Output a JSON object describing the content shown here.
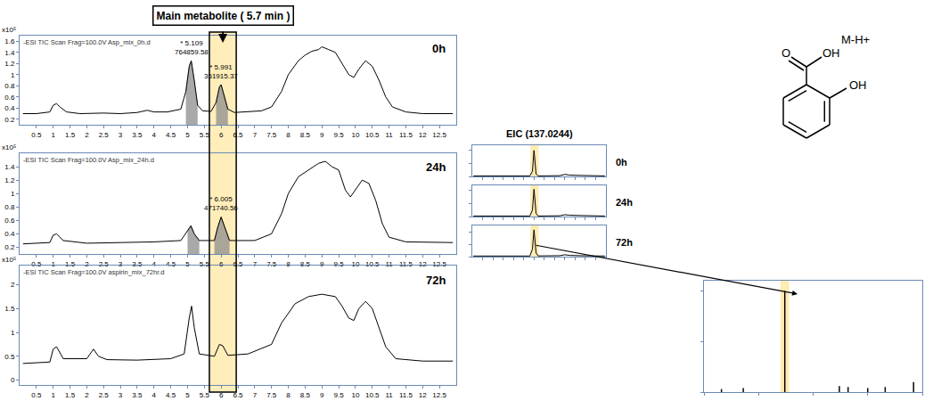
{
  "figure": {
    "band": {
      "range": [
        5.65,
        6.45
      ],
      "label": "Main metabolite ( 5.7 min )"
    },
    "eic_title": "EIC (137.0244)",
    "structure": {
      "label": "M-H+",
      "atoms": [
        "O",
        "OH",
        "OH"
      ]
    }
  },
  "chart_data": [
    {
      "type": "line",
      "title": "-ESI TIC Scan Frag=100.0V Asp_mix_0h.d",
      "label": "0h",
      "y_multiplier": "x10⁵",
      "color": "#000000",
      "x": [
        0.1,
        0.5,
        0.9,
        1.0,
        1.1,
        1.2,
        1.4,
        1.8,
        2.5,
        3.0,
        3.5,
        3.8,
        4.0,
        4.4,
        4.8,
        4.95,
        5.05,
        5.11,
        5.2,
        5.3,
        5.45,
        5.7,
        5.85,
        5.95,
        6.0,
        6.1,
        6.2,
        6.4,
        6.8,
        7.2,
        7.5,
        7.8,
        8.0,
        8.3,
        8.5,
        8.7,
        8.9,
        9.0,
        9.2,
        9.4,
        9.6,
        9.8,
        9.95,
        10.1,
        10.3,
        10.5,
        10.7,
        10.9,
        11.1,
        11.5,
        12.0,
        12.5,
        12.9
      ],
      "values": [
        0.3,
        0.3,
        0.33,
        0.45,
        0.48,
        0.42,
        0.33,
        0.3,
        0.31,
        0.3,
        0.32,
        0.36,
        0.33,
        0.33,
        0.38,
        0.7,
        1.15,
        1.25,
        0.9,
        0.45,
        0.35,
        0.34,
        0.5,
        0.78,
        0.82,
        0.6,
        0.38,
        0.32,
        0.33,
        0.35,
        0.42,
        0.7,
        1.0,
        1.25,
        1.35,
        1.42,
        1.45,
        1.5,
        1.45,
        1.4,
        1.2,
        1.0,
        0.95,
        1.1,
        1.25,
        1.15,
        0.9,
        0.6,
        0.42,
        0.33,
        0.3,
        0.3,
        0.3
      ],
      "shaded": [
        [
          4.85,
          5.4
        ],
        [
          5.75,
          6.3
        ]
      ],
      "annotations": [
        {
          "x": 5.109,
          "y": 1.3,
          "text": [
            "* 5.109",
            "764859.58"
          ]
        },
        {
          "x": 5.991,
          "y": 0.87,
          "text": [
            "* 5.991",
            "351915.37"
          ]
        }
      ],
      "xlim": [
        0,
        13
      ],
      "xticks": [
        0.5,
        1,
        1.5,
        2,
        2.5,
        3,
        3.5,
        4,
        4.5,
        5,
        5.5,
        6,
        6.5,
        7,
        7.5,
        8,
        8.5,
        9,
        9.5,
        10,
        10.5,
        11,
        11.5,
        12,
        12.5
      ],
      "ylim": [
        0.1,
        1.7
      ],
      "yticks": [
        0.2,
        0.4,
        0.6,
        0.8,
        1,
        1.2,
        1.4,
        1.6
      ],
      "grid": false
    },
    {
      "type": "line",
      "title": "-ESI TIC Scan Frag=100.0V Asp_mix_24h.d",
      "label": "24h",
      "y_multiplier": "x10⁵",
      "color": "#000000",
      "x": [
        0.1,
        0.9,
        1.0,
        1.1,
        1.3,
        2.0,
        3.0,
        4.0,
        4.8,
        5.0,
        5.1,
        5.2,
        5.35,
        5.8,
        5.9,
        6.0,
        6.1,
        6.25,
        7.0,
        7.5,
        7.8,
        8.0,
        8.3,
        8.6,
        8.9,
        9.1,
        9.3,
        9.5,
        9.7,
        9.85,
        10.0,
        10.2,
        10.4,
        10.6,
        10.8,
        11.0,
        11.5,
        12.9
      ],
      "values": [
        0.25,
        0.27,
        0.38,
        0.4,
        0.3,
        0.26,
        0.27,
        0.28,
        0.3,
        0.45,
        0.52,
        0.4,
        0.3,
        0.3,
        0.5,
        0.65,
        0.5,
        0.3,
        0.3,
        0.4,
        0.7,
        1.0,
        1.25,
        1.35,
        1.45,
        1.48,
        1.4,
        1.35,
        1.05,
        0.95,
        1.05,
        1.2,
        1.15,
        0.9,
        0.55,
        0.35,
        0.28,
        0.27
      ],
      "shaded": [
        [
          4.85,
          5.4
        ],
        [
          5.75,
          6.3
        ]
      ],
      "annotations": [
        {
          "x": 6.005,
          "y": 0.7,
          "text": [
            "* 6.005",
            "471740.56"
          ]
        }
      ],
      "xlim": [
        0,
        13
      ],
      "xticks": [
        0.5,
        1,
        1.5,
        2,
        2.5,
        3,
        3.5,
        4,
        4.5,
        5,
        5.5,
        6,
        6.5,
        7,
        7.5,
        8,
        8.5,
        9,
        9.5,
        10,
        10.5,
        11,
        11.5,
        12,
        12.5
      ],
      "ylim": [
        0.1,
        1.6
      ],
      "yticks": [
        0.2,
        0.4,
        0.6,
        0.8,
        1,
        1.2,
        1.4
      ],
      "grid": false
    },
    {
      "type": "line",
      "title": "-ESI TIC Scan Frag=100.0V aspirin_mix_72hr.d",
      "label": "72h",
      "y_multiplier": "x10⁵",
      "color": "#000000",
      "x": [
        0.1,
        0.9,
        1.0,
        1.1,
        1.3,
        2.0,
        2.2,
        2.35,
        2.6,
        3.5,
        4.5,
        4.9,
        5.05,
        5.12,
        5.2,
        5.35,
        5.8,
        5.95,
        6.05,
        6.2,
        6.8,
        7.5,
        7.8,
        8.2,
        8.6,
        9.0,
        9.4,
        9.6,
        9.8,
        9.95,
        10.1,
        10.3,
        10.5,
        10.7,
        10.9,
        11.2,
        12.0,
        12.9
      ],
      "values": [
        0.35,
        0.38,
        0.65,
        0.7,
        0.45,
        0.45,
        0.65,
        0.5,
        0.43,
        0.42,
        0.45,
        0.55,
        1.3,
        1.55,
        1.1,
        0.55,
        0.5,
        0.75,
        0.72,
        0.52,
        0.55,
        0.75,
        1.2,
        1.6,
        1.75,
        1.8,
        1.75,
        1.55,
        1.3,
        1.25,
        1.5,
        1.65,
        1.5,
        1.1,
        0.7,
        0.45,
        0.4,
        0.4
      ],
      "xlim": [
        0,
        13
      ],
      "xticks": [
        0.5,
        1,
        1.5,
        2,
        2.5,
        3,
        3.5,
        4,
        4.5,
        5,
        5.5,
        6,
        6.5,
        7,
        7.5,
        8,
        8.5,
        9,
        9.5,
        10,
        10.5,
        11,
        11.5,
        12,
        12.5
      ],
      "ylim": [
        -0.1,
        2.4
      ],
      "yticks": [
        0,
        0.5,
        1,
        1.5,
        2
      ],
      "grid": false
    },
    {
      "type": "line",
      "label": "0h",
      "color": "#000000",
      "x": [
        0.1,
        1.0,
        5.6,
        5.85,
        5.95,
        6.0,
        6.05,
        6.2,
        6.4,
        8.5,
        9.0,
        9.5,
        10.5,
        12.9
      ],
      "values": [
        0.02,
        0.02,
        0.02,
        0.2,
        0.9,
        1.0,
        0.8,
        0.1,
        0.02,
        0.03,
        0.08,
        0.05,
        0.04,
        0.02
      ],
      "highlight": [
        5.65,
        6.45
      ],
      "xlim": [
        0,
        13
      ],
      "xticks": [
        1,
        2,
        3,
        4,
        5,
        6,
        7,
        8,
        9,
        10,
        11,
        12
      ],
      "ylim": [
        0,
        1.2
      ],
      "yticks": [
        0,
        0.5,
        1
      ],
      "tick_labels": false,
      "grid": false
    },
    {
      "type": "line",
      "label": "24h",
      "color": "#000000",
      "x": [
        0.1,
        1.0,
        5.6,
        5.85,
        5.95,
        6.0,
        6.05,
        6.2,
        6.4,
        8.5,
        9.0,
        9.5,
        10.5,
        12.9
      ],
      "values": [
        0.02,
        0.02,
        0.02,
        0.25,
        0.95,
        1.05,
        0.85,
        0.12,
        0.02,
        0.03,
        0.07,
        0.05,
        0.04,
        0.02
      ],
      "highlight": [
        5.65,
        6.45
      ],
      "xlim": [
        0,
        13
      ],
      "xticks": [
        1,
        2,
        3,
        4,
        5,
        6,
        7,
        8,
        9,
        10,
        11,
        12
      ],
      "ylim": [
        0,
        1.2
      ],
      "yticks": [
        0,
        0.5,
        1
      ],
      "tick_labels": false,
      "grid": false
    },
    {
      "type": "line",
      "label": "72h",
      "color": "#000000",
      "x": [
        0.1,
        1.0,
        5.6,
        5.85,
        5.95,
        6.0,
        6.05,
        6.2,
        6.4,
        8.5,
        9.0,
        9.5,
        10.5,
        12.9
      ],
      "values": [
        0.1,
        0.1,
        0.1,
        1.2,
        3.9,
        4.3,
        3.5,
        0.6,
        0.12,
        0.15,
        0.3,
        0.2,
        0.15,
        0.1
      ],
      "highlight": [
        5.65,
        6.45
      ],
      "xlim": [
        0,
        13
      ],
      "xticks": [
        1,
        2,
        3,
        4,
        5,
        6,
        7,
        8,
        9,
        10,
        11,
        12
      ],
      "ylim": [
        0,
        5
      ],
      "yticks": [
        0,
        2,
        4
      ],
      "tick_labels": false,
      "grid": false
    },
    {
      "type": "bar",
      "color": "#000000",
      "x": [
        108,
        118,
        137.02,
        162,
        166,
        175,
        183,
        196
      ],
      "values": [
        0.03,
        0.04,
        1.0,
        0.06,
        0.05,
        0.04,
        0.05,
        0.1
      ],
      "highlight": [
        135,
        139
      ],
      "xlim": [
        100,
        200
      ],
      "xticks": [
        100,
        125,
        150,
        175,
        200
      ],
      "ylim": [
        0,
        1.1
      ],
      "yticks": [
        0,
        0.5,
        1
      ],
      "tick_labels": false,
      "grid": false
    }
  ]
}
